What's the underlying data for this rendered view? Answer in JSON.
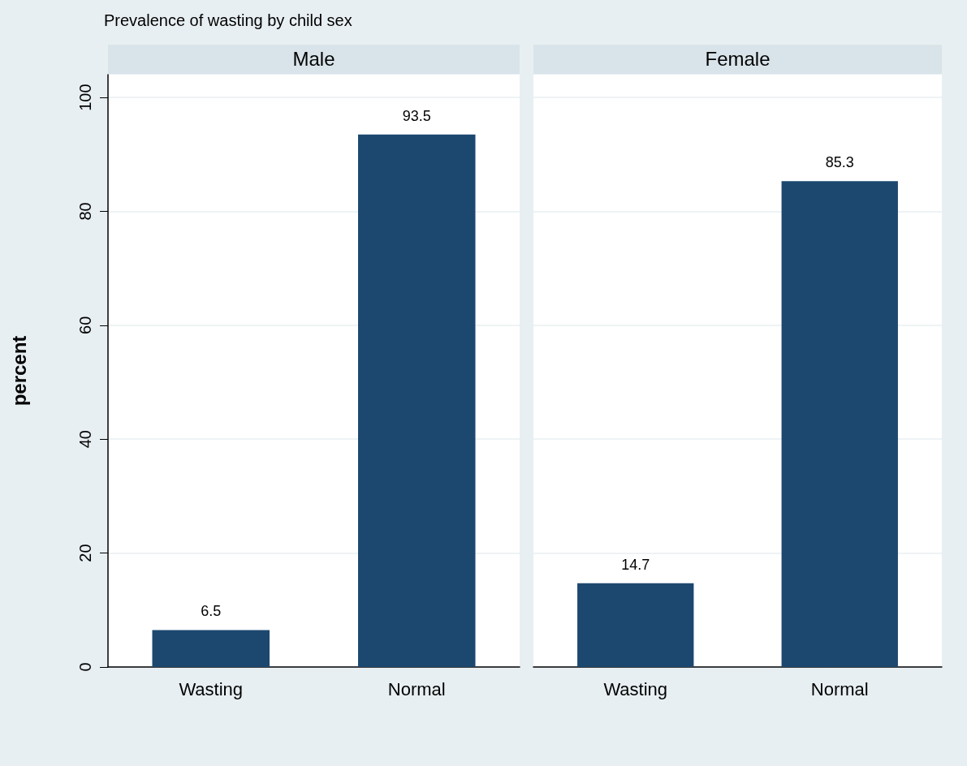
{
  "chart_data": [
    {
      "type": "bar",
      "title": "Male",
      "annotations": [
        "Prevalence of wasting by child sex"
      ],
      "ylabel": "percent",
      "categories": [
        "Wasting",
        "Normal"
      ],
      "values": [
        6.5,
        93.5
      ],
      "color": "#1c4870",
      "ylim": [
        0,
        104
      ],
      "yticks": [
        0,
        20,
        40,
        60,
        80,
        100
      ],
      "grid": "y",
      "data_labels": true
    },
    {
      "type": "bar",
      "title": "Female",
      "categories": [
        "Wasting",
        "Normal"
      ],
      "values": [
        14.7,
        85.3
      ],
      "color": "#1c4870",
      "ylim": [
        0,
        104
      ],
      "yticks": [
        0,
        20,
        40,
        60,
        80,
        100
      ],
      "grid": "y",
      "data_labels": true,
      "tick_labels": "x"
    }
  ]
}
